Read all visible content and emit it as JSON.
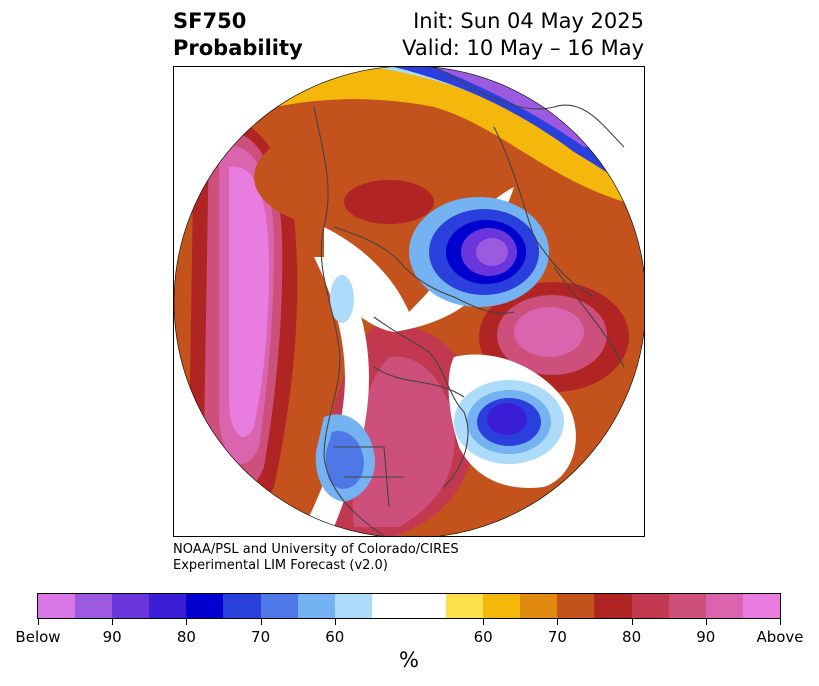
{
  "title": {
    "left_line1": "SF750",
    "left_line2": "Probability",
    "right_line1": "Init: Sun 04 May 2025",
    "right_line2": "Valid: 10 May – 16 May"
  },
  "credit": {
    "line1": "NOAA/PSL and University of Colorado/CIRES",
    "line2": "Experimental LIM Forecast (v2.0)"
  },
  "colorbar": {
    "colors": [
      "#da77e6",
      "#9b5ae0",
      "#6a36db",
      "#3a1ed6",
      "#0000cf",
      "#2a3fdc",
      "#4d78e6",
      "#74b2f1",
      "#acdcfa",
      "#ffffff",
      "#ffffff",
      "#fde04a",
      "#f4b80d",
      "#e08a10",
      "#c4521c",
      "#b12424",
      "#c2384f",
      "#cc4f7c",
      "#da64ae",
      "#e87ddf"
    ],
    "tick_labels": [
      "Below",
      "90",
      "80",
      "70",
      "60",
      "60",
      "70",
      "80",
      "90",
      "Above"
    ],
    "unit_label": "%"
  }
}
